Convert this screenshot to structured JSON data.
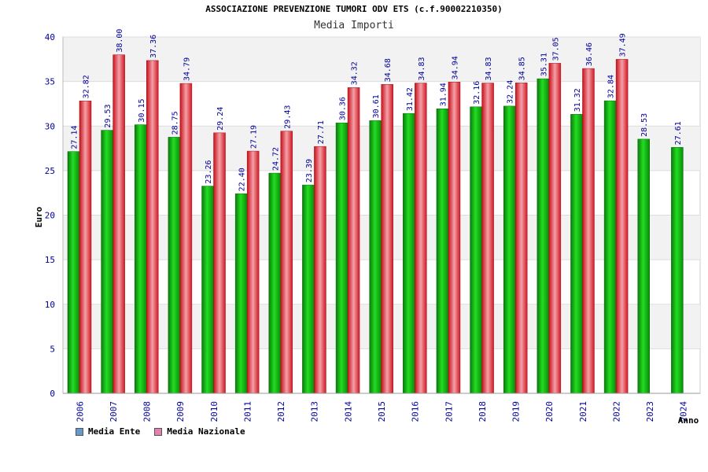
{
  "title": "ASSOCIAZIONE PREVENZIONE TUMORI ODV ETS (c.f.90002210350)",
  "subtitle": "Media Importi",
  "legend": [
    {
      "label": "Media Ente",
      "color": "#6699cc"
    },
    {
      "label": "Media Nazionale",
      "color": "#e57fb0"
    }
  ],
  "chart_data": {
    "type": "bar",
    "title": "Media Importi",
    "xlabel": "Anno",
    "ylabel": "Euro",
    "ylim": [
      0,
      40
    ],
    "yticks": [
      0,
      5,
      10,
      15,
      20,
      25,
      30,
      35,
      40
    ],
    "categories": [
      "2006",
      "2007",
      "2008",
      "2009",
      "2010",
      "2011",
      "2012",
      "2013",
      "2014",
      "2015",
      "2016",
      "2017",
      "2018",
      "2019",
      "2020",
      "2021",
      "2022",
      "2023",
      "2024"
    ],
    "series": [
      {
        "name": "Media Ente",
        "color": "#11aa11",
        "values": [
          27.14,
          29.53,
          30.15,
          28.75,
          23.26,
          22.4,
          24.72,
          23.39,
          30.36,
          30.61,
          31.42,
          31.94,
          32.16,
          32.24,
          35.31,
          31.32,
          32.84,
          28.53,
          27.61
        ]
      },
      {
        "name": "Media Nazionale",
        "color": "#e0202a",
        "values": [
          32.82,
          38.0,
          37.36,
          34.79,
          29.24,
          27.19,
          29.43,
          27.71,
          34.32,
          34.68,
          34.83,
          34.94,
          34.83,
          34.85,
          37.05,
          36.46,
          37.49,
          null,
          null
        ]
      }
    ]
  }
}
